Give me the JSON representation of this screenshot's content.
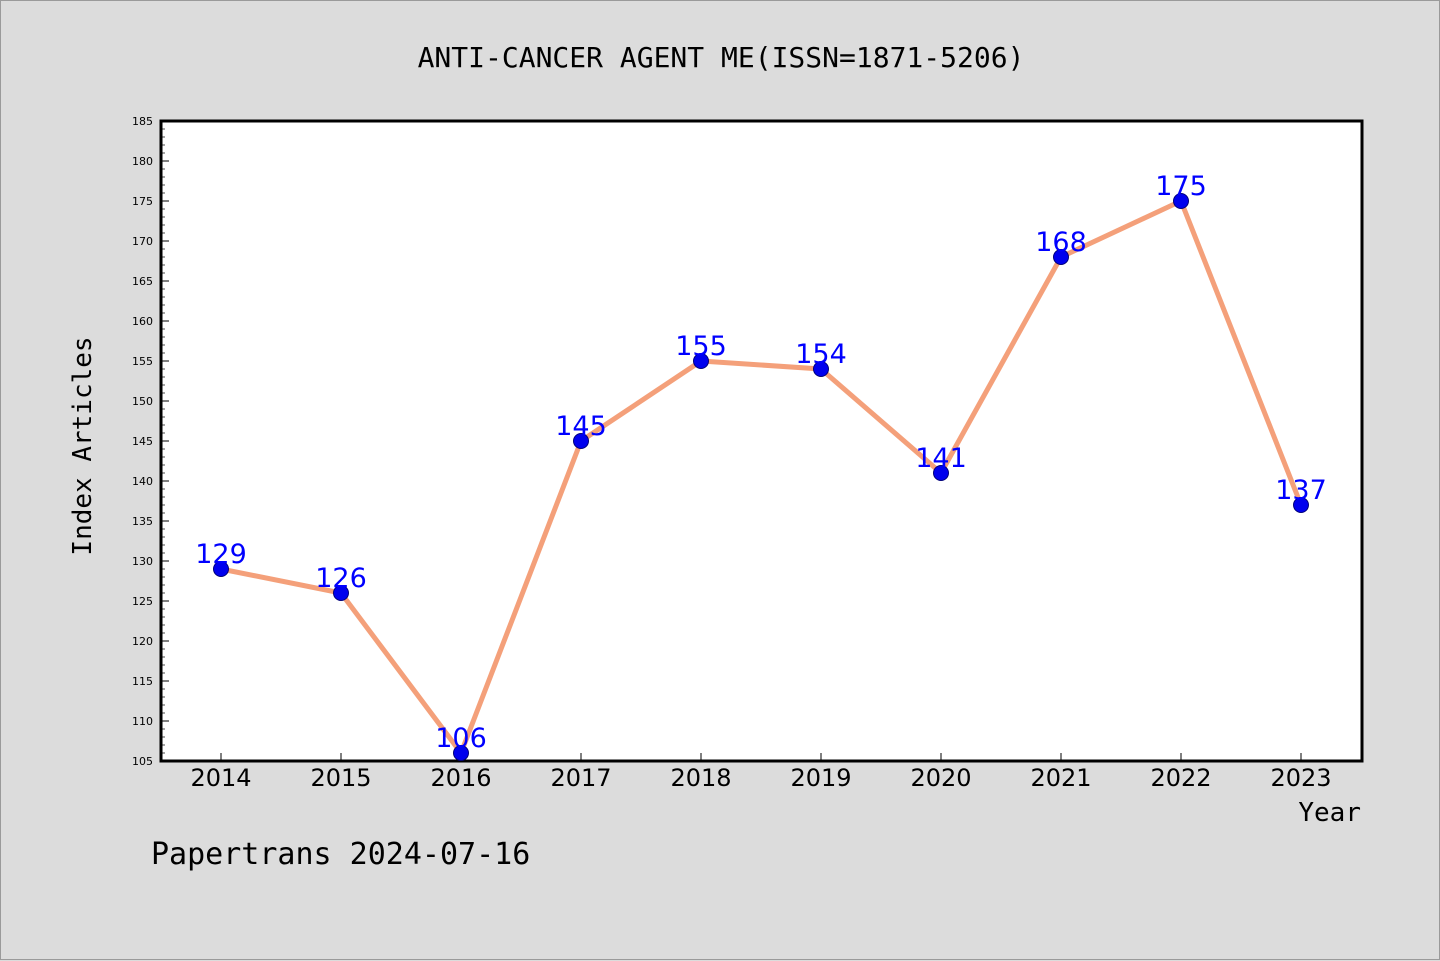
{
  "chart_data": {
    "type": "line",
    "title": "ANTI-CANCER AGENT ME(ISSN=1871-5206)",
    "xlabel": "Year",
    "ylabel": "Index Articles",
    "categories": [
      "2014",
      "2015",
      "2016",
      "2017",
      "2018",
      "2019",
      "2020",
      "2021",
      "2022",
      "2023"
    ],
    "values": [
      129,
      126,
      106,
      145,
      155,
      154,
      141,
      168,
      175,
      137
    ],
    "ylim": [
      105,
      185
    ],
    "yticks": [
      105,
      110,
      115,
      120,
      125,
      130,
      135,
      140,
      145,
      150,
      155,
      160,
      165,
      170,
      175,
      180,
      185
    ],
    "grid": false,
    "data_labels": true
  },
  "footer": {
    "watermark": "Papertrans 2024-07-16"
  },
  "colors": {
    "line": "#f4a07a",
    "marker": "#0000ee",
    "data_label": "#0000ff",
    "background": "#dcdcdc",
    "plot_area": "#ffffff"
  }
}
